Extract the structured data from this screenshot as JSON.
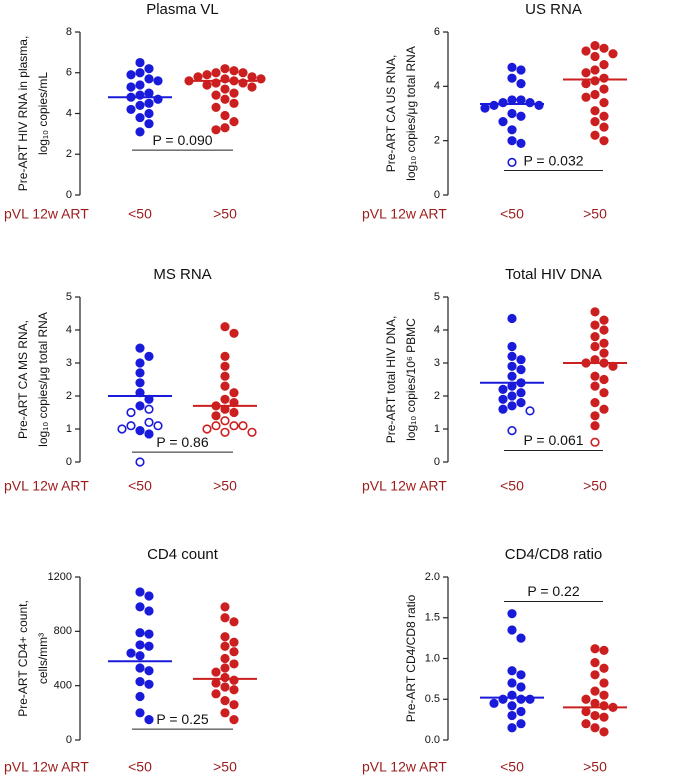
{
  "chart_data": [
    {
      "type": "dot",
      "title": "Plasma VL",
      "ylabel": [
        "Pre-ART HIV RNA in plasma,",
        "log₁₀ copies/mL"
      ],
      "xlabel": "pVL 12w ART",
      "categories": [
        "<50",
        ">50"
      ],
      "groups": [
        {
          "color": "#1a1adb",
          "values": [
            6.5,
            6.2,
            6.0,
            5.9,
            5.7,
            5.6,
            5.4,
            5.3,
            5.0,
            4.9,
            4.8,
            4.7,
            4.5,
            4.4,
            4.2,
            4.0,
            3.8,
            3.5,
            3.1
          ],
          "open": [],
          "median": 4.8
        },
        {
          "color": "#cc1f1f",
          "values": [
            6.2,
            6.1,
            6.0,
            6.0,
            5.9,
            5.8,
            5.8,
            5.7,
            5.7,
            5.6,
            5.6,
            5.5,
            5.5,
            5.4,
            5.3,
            5.2,
            5.0,
            4.9,
            4.7,
            4.5,
            4.3,
            3.9,
            3.6,
            3.3,
            3.2
          ],
          "open": [],
          "median": 5.6
        }
      ],
      "ylim": [
        0,
        8
      ],
      "yticks": [
        0,
        2,
        4,
        6,
        8
      ],
      "pvalue": {
        "label": "P = 0.090",
        "y": 2.2
      }
    },
    {
      "type": "dot",
      "title": "US RNA",
      "ylabel": [
        "Pre-ART CA US RNA,",
        "log₁₀ copies/μg total RNA"
      ],
      "xlabel": "pVL 12w ART",
      "categories": [
        "<50",
        ">50"
      ],
      "groups": [
        {
          "color": "#1a1adb",
          "values": [
            4.7,
            4.6,
            4.3,
            4.1,
            3.5,
            3.5,
            3.4,
            3.4,
            3.3,
            3.3,
            3.2,
            3.0,
            2.9,
            2.7,
            2.4,
            2.0,
            1.9
          ],
          "open": [
            1.2
          ],
          "median": 3.35
        },
        {
          "color": "#cc1f1f",
          "values": [
            5.5,
            5.4,
            5.3,
            5.2,
            5.1,
            4.8,
            4.6,
            4.5,
            4.3,
            4.2,
            4.1,
            3.9,
            3.7,
            3.6,
            3.4,
            3.1,
            2.9,
            2.7,
            2.5,
            2.2,
            2.0
          ],
          "open": [],
          "median": 4.25
        }
      ],
      "ylim": [
        0,
        6
      ],
      "yticks": [
        0,
        2,
        4,
        6
      ],
      "pvalue": {
        "label": "P = 0.032",
        "y": 0.9
      }
    },
    {
      "type": "dot",
      "title": "MS RNA",
      "ylabel": [
        "Pre-ART CA MS RNA,",
        "log₁₀ copies/μg total RNA"
      ],
      "xlabel": "pVL 12w ART",
      "categories": [
        "<50",
        ">50"
      ],
      "groups": [
        {
          "color": "#1a1adb",
          "values": [
            3.45,
            3.2,
            3.0,
            2.7,
            2.4,
            2.1,
            1.9,
            1.7,
            0.95,
            0.85
          ],
          "open": [
            1.6,
            1.5,
            1.2,
            1.1,
            1.1,
            1.0,
            0.0
          ],
          "median": 2.0
        },
        {
          "color": "#cc1f1f",
          "values": [
            4.1,
            3.9,
            3.2,
            2.9,
            2.6,
            2.3,
            2.1,
            1.9,
            1.8,
            1.7,
            1.6,
            1.5,
            1.4
          ],
          "open": [
            1.25,
            1.1,
            1.1,
            1.1,
            1.0,
            0.9,
            0.9
          ],
          "median": 1.7
        }
      ],
      "ylim": [
        0,
        5
      ],
      "yticks": [
        0,
        1,
        2,
        3,
        4,
        5
      ],
      "pvalue": {
        "label": "P = 0.86",
        "y": 0.3
      }
    },
    {
      "type": "dot",
      "title": "Total HIV DNA",
      "ylabel": [
        "Pre-ART total HIV DNA,",
        "log₁₀ copies/10⁶ PBMC"
      ],
      "xlabel": "pVL 12w ART",
      "categories": [
        "<50",
        ">50"
      ],
      "groups": [
        {
          "color": "#1a1adb",
          "values": [
            4.35,
            3.5,
            3.2,
            3.1,
            2.9,
            2.8,
            2.6,
            2.4,
            2.3,
            2.2,
            2.1,
            2.0,
            1.9,
            1.8,
            1.7,
            1.6
          ],
          "open": [
            1.55,
            0.95
          ],
          "median": 2.4
        },
        {
          "color": "#cc1f1f",
          "values": [
            4.55,
            4.3,
            4.15,
            4.0,
            3.8,
            3.6,
            3.5,
            3.3,
            3.1,
            3.0,
            3.0,
            2.9,
            2.6,
            2.5,
            2.3,
            2.1,
            1.8,
            1.6,
            1.4,
            1.1
          ],
          "open": [
            0.6
          ],
          "median": 3.0
        }
      ],
      "ylim": [
        0,
        5
      ],
      "yticks": [
        0,
        1,
        2,
        3,
        4,
        5
      ],
      "pvalue": {
        "label": "P = 0.061",
        "y": 0.35
      }
    },
    {
      "type": "dot",
      "title": "CD4 count",
      "ylabel": [
        "Pre-ART CD4+ count,",
        "cells/mm³"
      ],
      "xlabel": "pVL 12w ART",
      "categories": [
        "<50",
        ">50"
      ],
      "groups": [
        {
          "color": "#1a1adb",
          "values": [
            1090,
            1060,
            980,
            950,
            790,
            780,
            700,
            690,
            640,
            620,
            530,
            510,
            430,
            410,
            320,
            200,
            150
          ],
          "open": [],
          "median": 580
        },
        {
          "color": "#cc1f1f",
          "values": [
            980,
            900,
            870,
            760,
            720,
            690,
            650,
            600,
            560,
            530,
            500,
            460,
            440,
            420,
            390,
            370,
            340,
            290,
            260,
            200,
            150
          ],
          "open": [],
          "median": 450
        }
      ],
      "ylim": [
        0,
        1200
      ],
      "yticks": [
        0,
        400,
        800,
        1200
      ],
      "pvalue": {
        "label": "P = 0.25",
        "y": 80
      }
    },
    {
      "type": "dot",
      "title": "CD4/CD8 ratio",
      "ylabel": [
        "Pre-ART CD4/CD8 ratio"
      ],
      "xlabel": "pVL 12w ART",
      "categories": [
        "<50",
        ">50"
      ],
      "groups": [
        {
          "color": "#1a1adb",
          "values": [
            1.55,
            1.35,
            1.25,
            0.85,
            0.8,
            0.7,
            0.65,
            0.55,
            0.5,
            0.5,
            0.5,
            0.45,
            0.42,
            0.35,
            0.3,
            0.2,
            0.15
          ],
          "open": [],
          "median": 0.52
        },
        {
          "color": "#cc1f1f",
          "values": [
            1.12,
            1.1,
            0.95,
            0.88,
            0.8,
            0.7,
            0.6,
            0.55,
            0.5,
            0.45,
            0.42,
            0.4,
            0.35,
            0.3,
            0.28,
            0.2,
            0.15,
            0.1
          ],
          "open": [],
          "median": 0.4
        }
      ],
      "ylim": [
        0,
        2
      ],
      "yticks": [
        {
          "value": 0,
          "label": "0.0"
        },
        {
          "value": 0.5,
          "label": "0.5"
        },
        {
          "value": 1,
          "label": "1.0"
        },
        {
          "value": 1.5,
          "label": "1.5"
        },
        {
          "value": 2,
          "label": "2.0"
        }
      ],
      "pvalue": {
        "label": "P = 0.22",
        "y": 1.7
      }
    }
  ]
}
